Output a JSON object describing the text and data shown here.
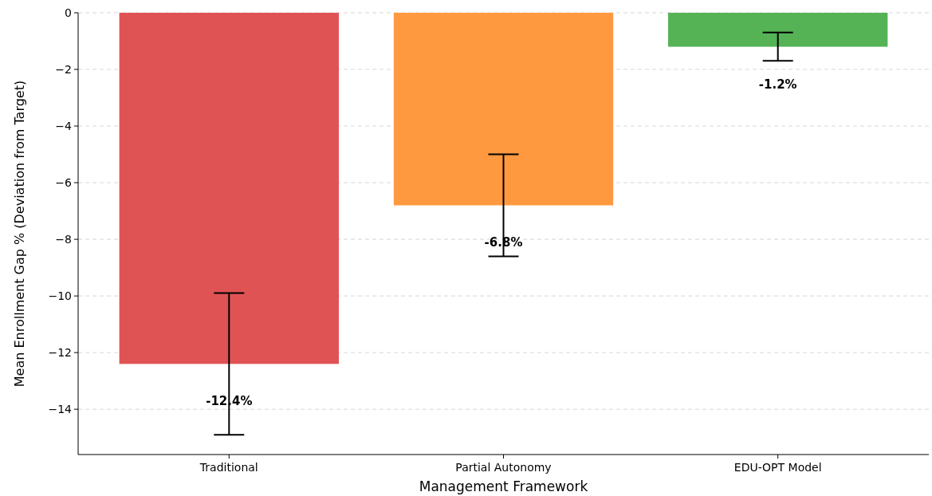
{
  "chart_data": {
    "type": "bar",
    "xlabel": "Management Framework",
    "ylabel": "Mean Enrollment Gap % (Deviation from Target)",
    "categories": [
      "Traditional",
      "Partial Autonomy",
      "EDU-OPT Model"
    ],
    "values": [
      -12.4,
      -6.8,
      -1.2
    ],
    "colors": [
      "#e05355",
      "#ff9940",
      "#55b355"
    ],
    "errors": [
      2.5,
      1.8,
      0.5
    ],
    "value_labels": [
      "-12.4%",
      "-6.8%",
      "-1.2%"
    ],
    "ylim": [
      -15.6,
      0
    ],
    "yticks": [
      {
        "value": -14,
        "label": "−14"
      },
      {
        "value": -12,
        "label": "−12"
      },
      {
        "value": -10,
        "label": "−10"
      },
      {
        "value": -8,
        "label": "−8"
      },
      {
        "value": -6,
        "label": "−6"
      },
      {
        "value": -4,
        "label": "−4"
      },
      {
        "value": -2,
        "label": "−2"
      },
      0
    ],
    "grid": "y"
  }
}
